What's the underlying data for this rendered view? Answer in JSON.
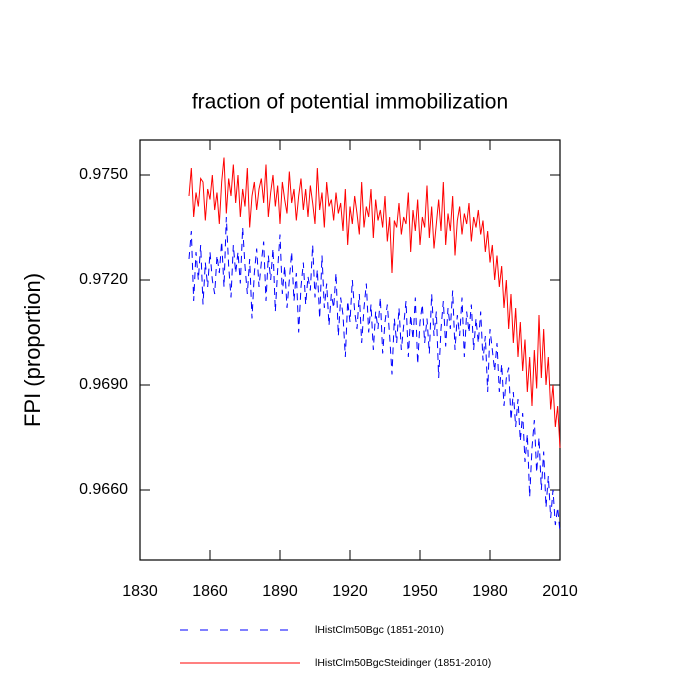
{
  "chart_data": {
    "type": "line",
    "title": "fraction of potential immobilization",
    "y_label": "FPI  (proportion)",
    "x": [
      1851,
      1852,
      1853,
      1854,
      1855,
      1856,
      1857,
      1858,
      1859,
      1860,
      1861,
      1862,
      1863,
      1864,
      1865,
      1866,
      1867,
      1868,
      1869,
      1870,
      1871,
      1872,
      1873,
      1874,
      1875,
      1876,
      1877,
      1878,
      1879,
      1880,
      1881,
      1882,
      1883,
      1884,
      1885,
      1886,
      1887,
      1888,
      1889,
      1890,
      1891,
      1892,
      1893,
      1894,
      1895,
      1896,
      1897,
      1898,
      1899,
      1900,
      1901,
      1902,
      1903,
      1904,
      1905,
      1906,
      1907,
      1908,
      1909,
      1910,
      1911,
      1912,
      1913,
      1914,
      1915,
      1916,
      1917,
      1918,
      1919,
      1920,
      1921,
      1922,
      1923,
      1924,
      1925,
      1926,
      1927,
      1928,
      1929,
      1930,
      1931,
      1932,
      1933,
      1934,
      1935,
      1936,
      1937,
      1938,
      1939,
      1940,
      1941,
      1942,
      1943,
      1944,
      1945,
      1946,
      1947,
      1948,
      1949,
      1950,
      1951,
      1952,
      1953,
      1954,
      1955,
      1956,
      1957,
      1958,
      1959,
      1960,
      1961,
      1962,
      1963,
      1964,
      1965,
      1966,
      1967,
      1968,
      1969,
      1970,
      1971,
      1972,
      1973,
      1974,
      1975,
      1976,
      1977,
      1978,
      1979,
      1980,
      1981,
      1982,
      1983,
      1984,
      1985,
      1986,
      1987,
      1988,
      1989,
      1990,
      1991,
      1992,
      1993,
      1994,
      1995,
      1996,
      1997,
      1998,
      1999,
      2000,
      2001,
      2002,
      2003,
      2004,
      2005,
      2006,
      2007,
      2008,
      2009,
      2010
    ],
    "series": [
      {
        "name": "lHistClm50Bgc (1851-2010)",
        "color": "#0000ff",
        "dash": true,
        "values": [
          0.9726,
          0.9734,
          0.9714,
          0.9728,
          0.972,
          0.973,
          0.9713,
          0.9725,
          0.9718,
          0.9728,
          0.972,
          0.9716,
          0.9727,
          0.9722,
          0.9731,
          0.9718,
          0.9738,
          0.9724,
          0.9715,
          0.973,
          0.9722,
          0.9728,
          0.9719,
          0.9735,
          0.9724,
          0.9716,
          0.9726,
          0.9709,
          0.9722,
          0.9729,
          0.9718,
          0.9725,
          0.9731,
          0.9714,
          0.9727,
          0.972,
          0.9729,
          0.9711,
          0.9723,
          0.9733,
          0.9716,
          0.9724,
          0.9712,
          0.972,
          0.9728,
          0.9714,
          0.9722,
          0.9705,
          0.9718,
          0.9725,
          0.9713,
          0.9721,
          0.9717,
          0.973,
          0.9715,
          0.9723,
          0.9709,
          0.9727,
          0.9712,
          0.9719,
          0.9707,
          0.9716,
          0.9712,
          0.9722,
          0.9704,
          0.9715,
          0.971,
          0.9698,
          0.9714,
          0.9708,
          0.972,
          0.9711,
          0.9706,
          0.9716,
          0.9702,
          0.9712,
          0.9719,
          0.9705,
          0.9713,
          0.97,
          0.9711,
          0.9706,
          0.9715,
          0.9699,
          0.9708,
          0.9713,
          0.9704,
          0.9693,
          0.9709,
          0.9702,
          0.9712,
          0.97,
          0.9707,
          0.9714,
          0.9698,
          0.971,
          0.9703,
          0.9715,
          0.9696,
          0.9708,
          0.9713,
          0.9702,
          0.9709,
          0.9699,
          0.9716,
          0.9704,
          0.9711,
          0.9692,
          0.9706,
          0.9714,
          0.9701,
          0.9712,
          0.9706,
          0.9717,
          0.97,
          0.971,
          0.9704,
          0.9715,
          0.9698,
          0.9711,
          0.9705,
          0.9713,
          0.97,
          0.9709,
          0.9702,
          0.9711,
          0.9697,
          0.9704,
          0.9688,
          0.9706,
          0.97,
          0.9694,
          0.9702,
          0.9688,
          0.9696,
          0.9684,
          0.9692,
          0.9695,
          0.968,
          0.9688,
          0.9678,
          0.9686,
          0.9674,
          0.9682,
          0.9668,
          0.9676,
          0.9658,
          0.9672,
          0.968,
          0.9665,
          0.9675,
          0.966,
          0.9671,
          0.9655,
          0.9664,
          0.9652,
          0.966,
          0.965,
          0.9655,
          0.9648
        ]
      },
      {
        "name": "lHistClm50BgcSteidinger (1851-2010)",
        "color": "#ff0000",
        "dash": false,
        "values": [
          0.9744,
          0.9752,
          0.9738,
          0.9745,
          0.9741,
          0.9749,
          0.9748,
          0.9737,
          0.9746,
          0.9743,
          0.975,
          0.974,
          0.9745,
          0.9736,
          0.9748,
          0.9755,
          0.9739,
          0.9749,
          0.9744,
          0.9753,
          0.9742,
          0.975,
          0.9738,
          0.9746,
          0.9741,
          0.9752,
          0.9735,
          0.9744,
          0.9748,
          0.974,
          0.9746,
          0.9749,
          0.9742,
          0.9753,
          0.9738,
          0.9745,
          0.975,
          0.9741,
          0.9747,
          0.9736,
          0.9748,
          0.9743,
          0.9739,
          0.9751,
          0.9742,
          0.9746,
          0.9737,
          0.9744,
          0.9749,
          0.974,
          0.9746,
          0.9738,
          0.9747,
          0.9742,
          0.9736,
          0.9752,
          0.974,
          0.9745,
          0.9735,
          0.9748,
          0.9741,
          0.9743,
          0.9737,
          0.9745,
          0.9739,
          0.9742,
          0.9734,
          0.9746,
          0.973,
          0.9741,
          0.9736,
          0.9744,
          0.9739,
          0.9733,
          0.9748,
          0.9735,
          0.9741,
          0.9738,
          0.9746,
          0.9732,
          0.9743,
          0.9737,
          0.974,
          0.9735,
          0.9744,
          0.9731,
          0.9738,
          0.9722,
          0.9737,
          0.9735,
          0.9742,
          0.9733,
          0.9738,
          0.9736,
          0.9745,
          0.9728,
          0.974,
          0.9734,
          0.9743,
          0.973,
          0.9738,
          0.9735,
          0.9747,
          0.9732,
          0.9741,
          0.9729,
          0.9736,
          0.9743,
          0.9734,
          0.9748,
          0.973,
          0.9739,
          0.9734,
          0.9744,
          0.9727,
          0.9737,
          0.9741,
          0.9733,
          0.9739,
          0.9736,
          0.9742,
          0.9731,
          0.9738,
          0.9735,
          0.974,
          0.9733,
          0.9737,
          0.9728,
          0.9734,
          0.9725,
          0.973,
          0.972,
          0.9727,
          0.9718,
          0.9724,
          0.9712,
          0.972,
          0.9706,
          0.9716,
          0.9702,
          0.9712,
          0.9698,
          0.9708,
          0.9694,
          0.9703,
          0.9688,
          0.9698,
          0.9684,
          0.97,
          0.9689,
          0.971,
          0.9692,
          0.9706,
          0.969,
          0.9698,
          0.9683,
          0.969,
          0.9678,
          0.9684,
          0.9672
        ]
      }
    ],
    "xlim": [
      1830,
      2010
    ],
    "xticks": [
      1830,
      1860,
      1890,
      1920,
      1950,
      1980,
      2010
    ],
    "ylim": [
      0.964,
      0.976
    ],
    "yticks": [
      {
        "value": 0.966,
        "label": "0.9660"
      },
      {
        "value": 0.969,
        "label": "0.9690"
      },
      {
        "value": 0.972,
        "label": "0.9720"
      },
      {
        "value": 0.975,
        "label": "0.9750"
      }
    ],
    "grid": false,
    "legend": "bottom"
  }
}
